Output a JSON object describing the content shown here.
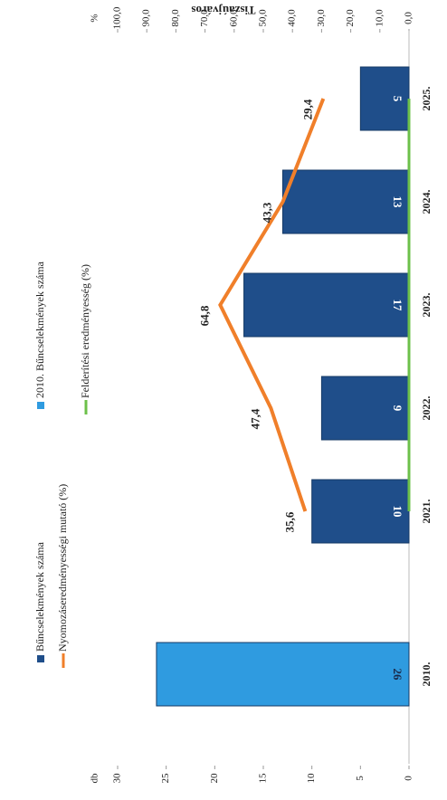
{
  "chart_data": {
    "type": "bar",
    "title": "Tiszaújváros",
    "y_label": "db",
    "y2_label": "%",
    "categories": [
      "2010.",
      "2021.",
      "2022.",
      "2023.",
      "2024.",
      "2025."
    ],
    "series": [
      {
        "name": "Bűncselekmények száma",
        "color": "#1f4e8a",
        "type": "bar",
        "values": [
          null,
          10,
          9,
          17,
          13,
          5
        ]
      },
      {
        "name": "2010. Bűncselekmények száma",
        "color": "#2f9be0",
        "type": "bar",
        "values": [
          26,
          null,
          null,
          null,
          null,
          null
        ]
      },
      {
        "name": "Nyomozáseredményességi mutató (%)",
        "color": "#f07f2a",
        "type": "line",
        "axis": "y2",
        "values": [
          null,
          35.6,
          47.4,
          64.8,
          43.3,
          29.4
        ],
        "value_labels": [
          null,
          "35,6",
          "47,4",
          "64,8",
          "43,3",
          "29,4"
        ]
      },
      {
        "name": "Felderítési eredményesség (%)",
        "color": "#6cc04a",
        "type": "line",
        "axis": "y2",
        "values": [
          null,
          0,
          0,
          0,
          0,
          0
        ]
      }
    ],
    "ylim": [
      0,
      30
    ],
    "yticks": [
      0,
      5,
      10,
      15,
      20,
      25,
      30
    ],
    "y2lim": [
      0,
      100
    ],
    "y2ticks": [
      {
        "value": 0,
        "label": "0,0"
      },
      {
        "value": 10,
        "label": "10,0"
      },
      {
        "value": 20,
        "label": "20,0"
      },
      {
        "value": 30,
        "label": "30,0"
      },
      {
        "value": 40,
        "label": "40,0"
      },
      {
        "value": 50,
        "label": "50,0"
      },
      {
        "value": 60,
        "label": "60,0"
      },
      {
        "value": 70,
        "label": "70,0"
      },
      {
        "value": 80,
        "label": "80,0"
      },
      {
        "value": 90,
        "label": "90,0"
      },
      {
        "value": 100,
        "label": "100,0"
      }
    ],
    "grid": false
  }
}
